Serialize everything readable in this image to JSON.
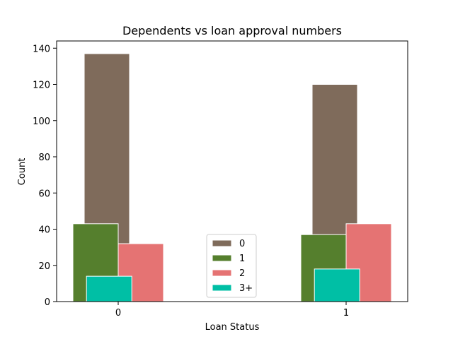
{
  "chart_data": {
    "type": "bar",
    "title": "Dependents vs loan approval numbers",
    "xlabel": "Loan Status",
    "ylabel": "Count",
    "categories": [
      "0",
      "1"
    ],
    "ylim": [
      0,
      144
    ],
    "yticks": [
      0,
      20,
      40,
      60,
      80,
      100,
      120,
      140
    ],
    "series": [
      {
        "name": "0",
        "values": [
          137,
          120
        ],
        "color": "#7f6b5b"
      },
      {
        "name": "1",
        "values": [
          43,
          37
        ],
        "color": "#557f2d"
      },
      {
        "name": "2",
        "values": [
          32,
          43
        ],
        "color": "#e57373"
      },
      {
        "name": "3+",
        "values": [
          14,
          18
        ],
        "color": "#00bfa5"
      }
    ],
    "legend_position": "lower center",
    "grid": false
  }
}
